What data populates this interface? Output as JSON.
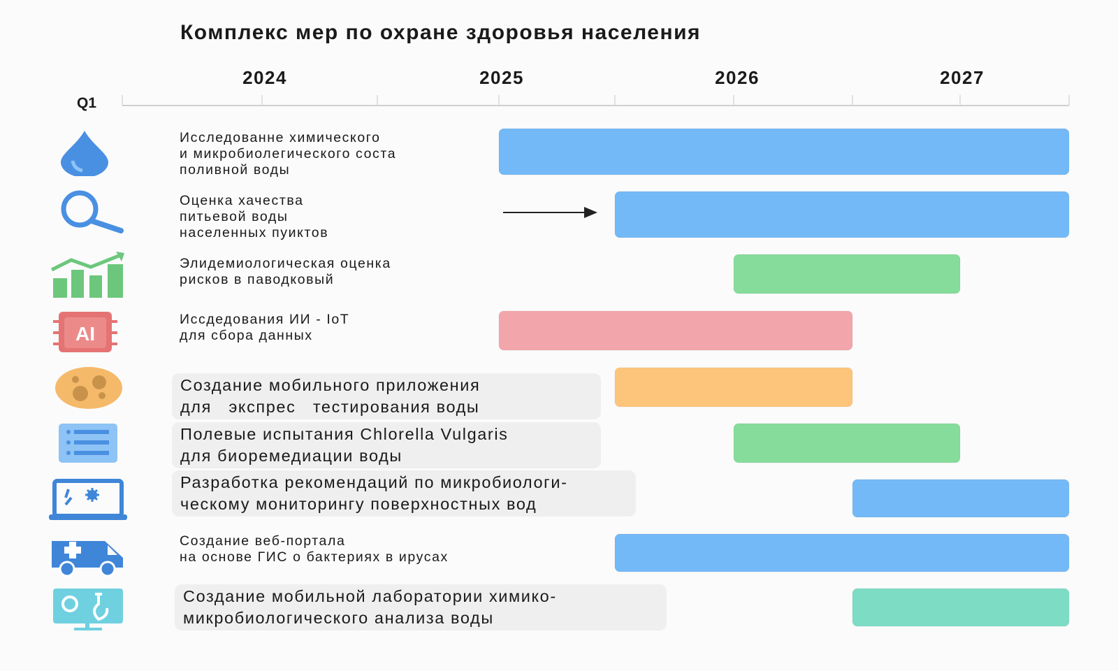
{
  "chart_data": {
    "type": "gantt",
    "title": "Комплекс мер по охране здоровья населения",
    "axis_label_left": "Q1",
    "year_labels": [
      "2024",
      "2025",
      "2026",
      "2027"
    ],
    "ticks": [
      2023.5,
      2024,
      2024.5,
      2025,
      2025.5,
      2026,
      2026.5,
      2027,
      2027.5
    ],
    "xlim": [
      2023.5,
      2027.5
    ],
    "grid": false,
    "tasks": [
      {
        "label": "Исследованне химического\nи микробиолегического соста\nполивной воды",
        "start": 2025.0,
        "end": 2027.5,
        "color": "#74b9f7",
        "icon": "water-drop-icon",
        "boxed": false
      },
      {
        "label": "Оценка хачества\nпитьевой воды\nнаселенных пуиктов",
        "start": 2025.5,
        "end": 2027.5,
        "color": "#74b9f7",
        "icon": "magnifier-icon",
        "boxed": false,
        "arrow": true
      },
      {
        "label": "Элидемиологическая оценка\nрисков в паводковый",
        "start": 2026.0,
        "end": 2027.0,
        "color": "#86dc9a",
        "icon": "growth-chart-icon",
        "boxed": false
      },
      {
        "label": "Иссдедования ИИ - IoT\nдля сбора данных",
        "start": 2025.0,
        "end": 2026.5,
        "color": "#f2a6ab",
        "icon": "ai-chip-icon",
        "boxed": false
      },
      {
        "label": "Создание мобильного приложения\nдля   экспрес   тестирования воды",
        "start": 2025.5,
        "end": 2026.5,
        "color": "#fdc57c",
        "icon": "petri-dish-icon",
        "boxed": true
      },
      {
        "label": "Полевые испытания Chlorella Vulgaris\nдля биоремедиации воды",
        "start": 2026.0,
        "end": 2027.0,
        "color": "#86dc9a",
        "icon": "list-icon",
        "boxed": true
      },
      {
        "label": "Разработка рекомендаций по микробиологи-\nческому мониторингу поверхностных вод",
        "start": 2026.5,
        "end": 2027.5,
        "color": "#74b9f7",
        "icon": "laptop-microbe-icon",
        "boxed": true
      },
      {
        "label": "Создание веб-портала\nна основе ГИС о бактериях в ирусах",
        "start": 2025.5,
        "end": 2027.5,
        "color": "#74b9f7",
        "icon": "ambulance-icon",
        "boxed": false
      },
      {
        "label": "Создание мобильной лаборатории химико-\nмикробиологического анализа воды",
        "start": 2026.5,
        "end": 2027.5,
        "color": "#7ddcc4",
        "icon": "lab-monitor-icon",
        "boxed": true
      }
    ]
  }
}
